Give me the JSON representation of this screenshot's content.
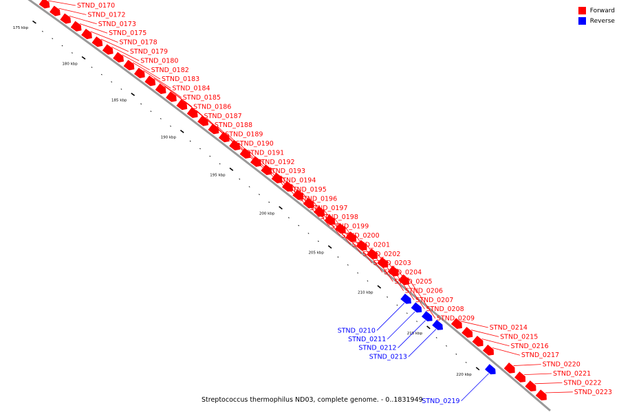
{
  "legend": {
    "items": [
      {
        "label": "Forward",
        "color": "#ff0000"
      },
      {
        "label": "Reverse",
        "color": "#0000ff"
      }
    ]
  },
  "caption": "Streptococcus thermophilus ND03, complete genome. - 0..1831949",
  "colors": {
    "forward": "#ff0000",
    "reverse": "#0000ff",
    "backbone": "#999999"
  },
  "ticks": [
    "175 kbp",
    "180 kbp",
    "185 kbp",
    "190 kbp",
    "195 kbp",
    "200 kbp",
    "205 kbp",
    "210 kbp",
    "215 kbp",
    "220 kbp"
  ],
  "genes": [
    {
      "name": "STND_0170",
      "strand": "forward"
    },
    {
      "name": "STND_0172",
      "strand": "forward"
    },
    {
      "name": "STND_0173",
      "strand": "forward"
    },
    {
      "name": "STND_0175",
      "strand": "forward"
    },
    {
      "name": "STND_0178",
      "strand": "forward"
    },
    {
      "name": "STND_0179",
      "strand": "forward"
    },
    {
      "name": "STND_0180",
      "strand": "forward"
    },
    {
      "name": "STND_0182",
      "strand": "forward"
    },
    {
      "name": "STND_0183",
      "strand": "forward"
    },
    {
      "name": "STND_0184",
      "strand": "forward"
    },
    {
      "name": "STND_0185",
      "strand": "forward"
    },
    {
      "name": "STND_0186",
      "strand": "forward"
    },
    {
      "name": "STND_0187",
      "strand": "forward"
    },
    {
      "name": "STND_0188",
      "strand": "forward"
    },
    {
      "name": "STND_0189",
      "strand": "forward"
    },
    {
      "name": "STND_0190",
      "strand": "forward"
    },
    {
      "name": "STND_0191",
      "strand": "forward"
    },
    {
      "name": "STND_0192",
      "strand": "forward"
    },
    {
      "name": "STND_0193",
      "strand": "forward"
    },
    {
      "name": "STND_0194",
      "strand": "forward"
    },
    {
      "name": "STND_0195",
      "strand": "forward"
    },
    {
      "name": "STND_0196",
      "strand": "forward"
    },
    {
      "name": "STND_0197",
      "strand": "forward"
    },
    {
      "name": "STND_0198",
      "strand": "forward"
    },
    {
      "name": "STND_0199",
      "strand": "forward"
    },
    {
      "name": "STND_0200",
      "strand": "forward"
    },
    {
      "name": "STND_0201",
      "strand": "forward"
    },
    {
      "name": "STND_0202",
      "strand": "forward"
    },
    {
      "name": "STND_0203",
      "strand": "forward"
    },
    {
      "name": "STND_0204",
      "strand": "forward"
    },
    {
      "name": "STND_0205",
      "strand": "forward"
    },
    {
      "name": "STND_0206",
      "strand": "forward"
    },
    {
      "name": "STND_0207",
      "strand": "forward"
    },
    {
      "name": "STND_0208",
      "strand": "forward"
    },
    {
      "name": "STND_0209",
      "strand": "forward"
    },
    {
      "name": "STND_0210",
      "strand": "reverse"
    },
    {
      "name": "STND_0211",
      "strand": "reverse"
    },
    {
      "name": "STND_0212",
      "strand": "reverse"
    },
    {
      "name": "STND_0213",
      "strand": "reverse"
    },
    {
      "name": "STND_0214",
      "strand": "forward"
    },
    {
      "name": "STND_0215",
      "strand": "forward"
    },
    {
      "name": "STND_0216",
      "strand": "forward"
    },
    {
      "name": "STND_0217",
      "strand": "forward"
    },
    {
      "name": "STND_0219",
      "strand": "reverse"
    },
    {
      "name": "STND_0220",
      "strand": "forward"
    },
    {
      "name": "STND_0221",
      "strand": "forward"
    },
    {
      "name": "STND_0222",
      "strand": "forward"
    },
    {
      "name": "STND_0223",
      "strand": "forward"
    }
  ]
}
